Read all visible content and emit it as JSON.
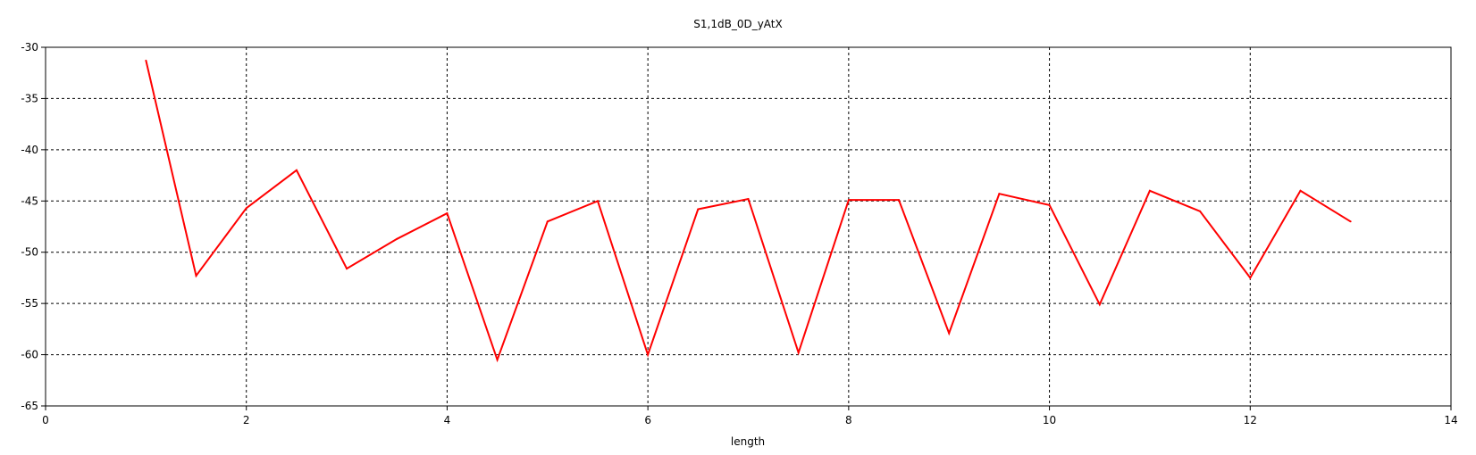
{
  "chart_data": {
    "type": "line",
    "title": "S1,1dB_0D_yAtX",
    "xlabel": "length",
    "ylabel": "",
    "xlim": [
      0,
      14
    ],
    "ylim": [
      -65,
      -30
    ],
    "x_ticks": [
      "0",
      "2",
      "4",
      "6",
      "8",
      "10",
      "12",
      "14"
    ],
    "y_ticks": [
      "-30",
      "-35",
      "-40",
      "-45",
      "-50",
      "-55",
      "-60",
      "-65"
    ],
    "grid": true,
    "line_color": "#ff0000",
    "grid_color": "#000000",
    "series": [
      {
        "x": [
          1,
          1.5,
          2,
          2.5,
          3,
          3.5,
          4,
          4.5,
          5,
          5.5,
          6,
          6.5,
          7,
          7.5,
          8,
          8.5,
          9,
          9.5,
          10,
          10.5,
          11,
          11.5,
          12,
          12.5,
          13
        ],
        "values": [
          -31.3,
          -52.3,
          -45.7,
          -42.0,
          -51.6,
          -48.7,
          -46.2,
          -60.5,
          -47.0,
          -45.0,
          -60.0,
          -45.8,
          -44.8,
          -59.8,
          -44.9,
          -44.9,
          -57.9,
          -44.3,
          -45.4,
          -55.1,
          -44.0,
          -46.0,
          -52.5,
          -44.0,
          -47.0
        ]
      }
    ]
  }
}
